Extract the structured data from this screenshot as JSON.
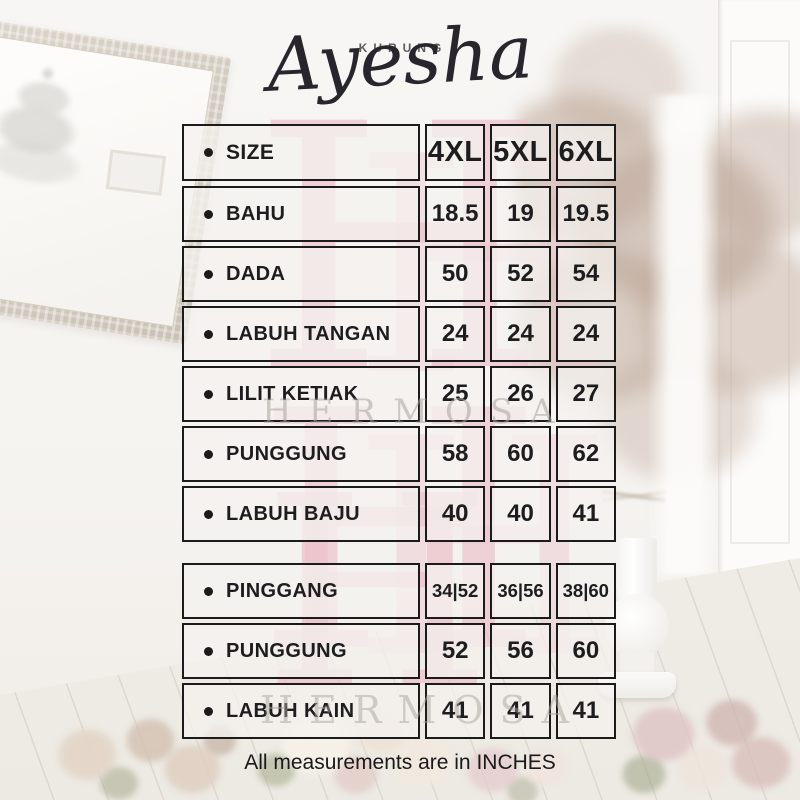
{
  "brand": {
    "collection": "KURUNG",
    "name": "Ayesha",
    "watermark_letter": "H",
    "watermark_name": "HERMOSA"
  },
  "size_chart": {
    "header": {
      "label": "SIZE",
      "columns": [
        "4XL",
        "5XL",
        "6XL"
      ]
    },
    "rows": [
      {
        "label": "BAHU",
        "values": [
          "18.5",
          "19",
          "19.5"
        ]
      },
      {
        "label": "DADA",
        "values": [
          "50",
          "52",
          "54"
        ]
      },
      {
        "label": "LABUH TANGAN",
        "values": [
          "24",
          "24",
          "24"
        ]
      },
      {
        "label": "LILIT KETIAK",
        "values": [
          "25",
          "26",
          "27"
        ]
      },
      {
        "label": "PUNGGUNG",
        "values": [
          "58",
          "60",
          "62"
        ]
      },
      {
        "label": "LABUH BAJU",
        "values": [
          "40",
          "40",
          "41"
        ]
      },
      {
        "label": "PINGGANG",
        "values": [
          "34|52",
          "36|56",
          "38|60"
        ],
        "new_group": true
      },
      {
        "label": "PUNGGUNG",
        "values": [
          "52",
          "56",
          "60"
        ]
      },
      {
        "label": "LABUH KAIN",
        "values": [
          "41",
          "41",
          "41"
        ]
      }
    ],
    "unit_note": "All measurements are in INCHES"
  },
  "colors": {
    "accent_pink": "#ecc2cb",
    "cell_border": "#1b1b1b",
    "cell_background": "#f4f2ef",
    "text": "#1d1d20",
    "watermark_gray": "#a9a49c"
  }
}
